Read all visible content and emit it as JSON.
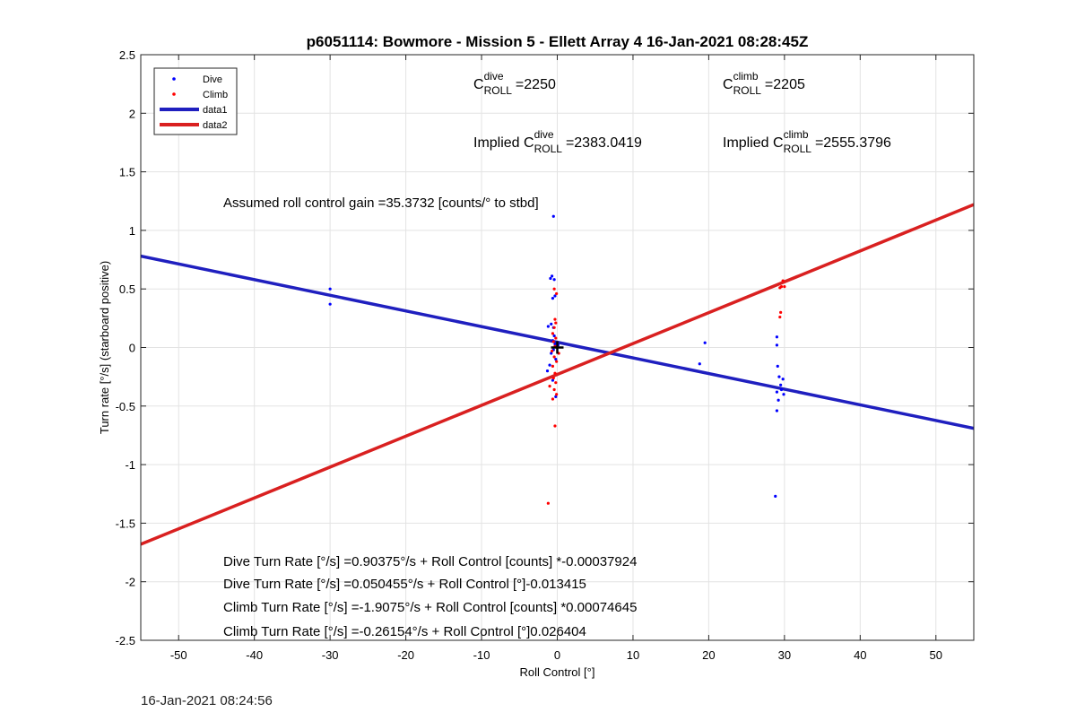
{
  "chart_data": {
    "type": "scatter",
    "title": "p6051114: Bowmore - Mission 5 - Ellett Array 4 16-Jan-2021 08:28:45Z",
    "xlabel": "Roll Control [°]",
    "ylabel": "Turn rate [°/s] (starboard positive)",
    "xlim": [
      -55,
      55
    ],
    "ylim": [
      -2.5,
      2.5
    ],
    "x_ticks": [
      "-50",
      "-40",
      "-30",
      "-20",
      "-10",
      "0",
      "10",
      "20",
      "30",
      "40",
      "50"
    ],
    "y_ticks": [
      "-2.5",
      "-2",
      "-1.5",
      "-1",
      "-0.5",
      "0",
      "0.5",
      "1",
      "1.5",
      "2",
      "2.5"
    ],
    "grid": true,
    "legend_placement": "top-left",
    "legend": [
      "Dive",
      "Climb",
      "data1",
      "data2"
    ],
    "colors": {
      "dive": "#0000ff",
      "climb": "#ff0000",
      "fit_dive": "#1f1fbf",
      "fit_climb": "#d92020",
      "marker": "#000000"
    },
    "series": [
      {
        "name": "Dive",
        "mode": "markers",
        "points": [
          [
            -30,
            0.5
          ],
          [
            -30,
            0.37
          ],
          [
            -0.5,
            1.12
          ],
          [
            -0.7,
            0.61
          ],
          [
            -0.4,
            0.58
          ],
          [
            -0.9,
            0.59
          ],
          [
            -0.6,
            0.42
          ],
          [
            -0.3,
            0.44
          ],
          [
            -0.8,
            0.2
          ],
          [
            -0.5,
            0.17
          ],
          [
            -1.2,
            0.18
          ],
          [
            -0.4,
            0.1
          ],
          [
            -0.6,
            0.06
          ],
          [
            -0.3,
            0.03
          ],
          [
            -0.5,
            -0.02
          ],
          [
            -0.8,
            -0.05
          ],
          [
            -0.2,
            -0.1
          ],
          [
            -1.0,
            -0.15
          ],
          [
            -1.3,
            -0.2
          ],
          [
            -0.6,
            -0.28
          ],
          [
            -0.2,
            -0.42
          ],
          [
            0.1,
            0.02
          ],
          [
            19.5,
            0.04
          ],
          [
            18.8,
            -0.14
          ],
          [
            29,
            0.09
          ],
          [
            29,
            0.02
          ],
          [
            29.1,
            -0.16
          ],
          [
            29.3,
            -0.25
          ],
          [
            29.5,
            -0.32
          ],
          [
            29.8,
            -0.27
          ],
          [
            29.6,
            -0.36
          ],
          [
            29.0,
            -0.38
          ],
          [
            29.9,
            -0.4
          ],
          [
            29.2,
            -0.45
          ],
          [
            29,
            -0.54
          ],
          [
            28.8,
            -1.27
          ]
        ]
      },
      {
        "name": "Climb",
        "mode": "markers",
        "points": [
          [
            -1.2,
            -1.33
          ],
          [
            -0.3,
            -0.67
          ],
          [
            -0.4,
            0.5
          ],
          [
            -0.1,
            0.46
          ],
          [
            -0.3,
            0.24
          ],
          [
            -0.2,
            0.21
          ],
          [
            -0.4,
            0.17
          ],
          [
            -0.6,
            0.12
          ],
          [
            -0.2,
            0.08
          ],
          [
            -0.5,
            0.05
          ],
          [
            -0.3,
            0.01
          ],
          [
            -0.7,
            -0.03
          ],
          [
            -0.4,
            -0.08
          ],
          [
            -0.1,
            -0.12
          ],
          [
            -0.6,
            -0.16
          ],
          [
            -0.3,
            -0.22
          ],
          [
            -0.5,
            -0.26
          ],
          [
            -0.2,
            -0.3
          ],
          [
            -1.0,
            -0.33
          ],
          [
            -0.4,
            -0.36
          ],
          [
            -0.1,
            -0.4
          ],
          [
            -0.6,
            -0.44
          ],
          [
            0.2,
            -0.05
          ],
          [
            29.8,
            0.57
          ],
          [
            29.6,
            0.52
          ],
          [
            29.4,
            0.51
          ],
          [
            30.0,
            0.52
          ],
          [
            29.5,
            0.3
          ],
          [
            29.4,
            0.26
          ]
        ]
      },
      {
        "name": "data1",
        "mode": "line",
        "points": [
          [
            -55,
            0.78
          ],
          [
            55,
            -0.69
          ]
        ]
      },
      {
        "name": "data2",
        "mode": "line",
        "points": [
          [
            -55,
            -1.68
          ],
          [
            55,
            1.22
          ]
        ]
      }
    ],
    "cross_marker": [
      0,
      0
    ],
    "annotations": {
      "c_dive_base": "C",
      "c_dive_sup": "dive",
      "c_dive_sub": "ROLL",
      "c_dive_value": "=2250",
      "c_climb_base": "C",
      "c_climb_sup": "climb",
      "c_climb_sub": "ROLL",
      "c_climb_value": "=2205",
      "implied_dive_prefix": "Implied C",
      "implied_dive_sup": "dive",
      "implied_dive_sub": "ROLL",
      "implied_dive_value": "=2383.0419",
      "implied_climb_prefix": "Implied C",
      "implied_climb_sup": "climb",
      "implied_climb_sub": "ROLL",
      "implied_climb_value": "=2555.3796",
      "gain": "Assumed roll control gain =35.3732 [counts/° to stbd]",
      "eq1": "Dive Turn Rate [°/s] =0.90375°/s + Roll Control [counts] *-0.00037924",
      "eq2": "Dive Turn Rate [°/s] =0.050455°/s + Roll Control [°]-0.013415",
      "eq3": "Climb Turn Rate [°/s] =-1.9075°/s + Roll Control [counts] *0.00074645",
      "eq4": "Climb Turn Rate [°/s] =-0.26154°/s + Roll Control [°]0.026404"
    }
  },
  "footer": {
    "timestamp": "16-Jan-2021 08:24:56"
  }
}
